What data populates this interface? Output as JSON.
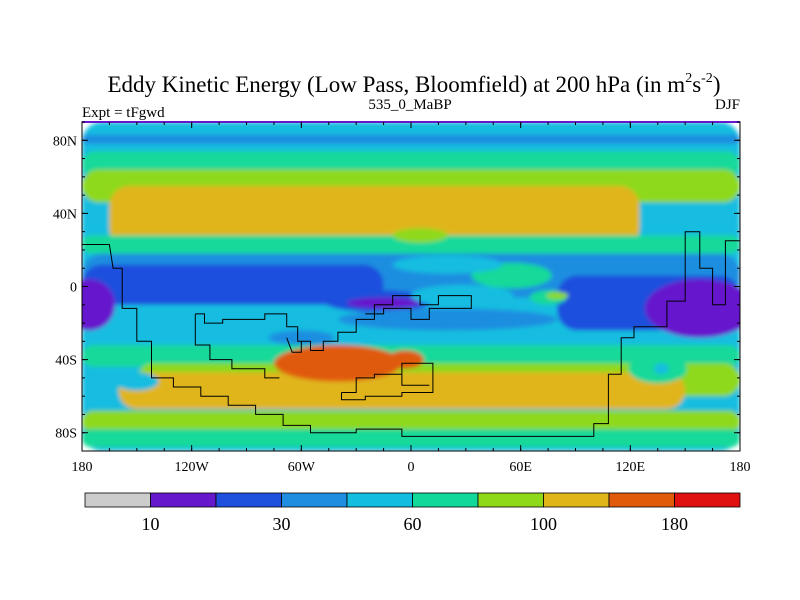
{
  "chart_data": {
    "type": "contour-map",
    "title": "Eddy Kinetic Energy (Low Pass, Bloomfield) at 200 hPa (in m",
    "title_units": {
      "sup1": "2",
      "mid": "s",
      "sup2": "-2",
      "close": ")"
    },
    "left_label": "Expt = tFgwd",
    "center_label": "535_0_MaBP",
    "right_label": "DJF",
    "lon_range": [
      -180,
      180
    ],
    "lat_range": [
      -90,
      90
    ],
    "x_ticks": [
      {
        "value": -180,
        "label": "180"
      },
      {
        "value": -120,
        "label": "120W"
      },
      {
        "value": -60,
        "label": "60W"
      },
      {
        "value": 0,
        "label": "0"
      },
      {
        "value": 60,
        "label": "60E"
      },
      {
        "value": 120,
        "label": "120E"
      },
      {
        "value": 180,
        "label": "180"
      }
    ],
    "y_ticks": [
      {
        "value": 80,
        "label": "80N"
      },
      {
        "value": 40,
        "label": "40N"
      },
      {
        "value": 0,
        "label": "0"
      },
      {
        "value": -40,
        "label": "40S"
      },
      {
        "value": -80,
        "label": "80S"
      }
    ],
    "colorbar": {
      "colors": [
        "#cccccc",
        "#6619cc",
        "#1f4fdd",
        "#1f8ee0",
        "#12bde0",
        "#12d99a",
        "#8ed91a",
        "#e0b51a",
        "#e05a0a",
        "#e01010"
      ],
      "labels": [
        {
          "after_box": 1,
          "text": "10"
        },
        {
          "after_box": 3,
          "text": "30"
        },
        {
          "after_box": 5,
          "text": "60"
        },
        {
          "after_box": 7,
          "text": "100"
        },
        {
          "after_box": 9,
          "text": "180"
        }
      ]
    },
    "fields": [
      {
        "level": 4,
        "lon": -180,
        "lat": 90,
        "w": 360,
        "h": 180
      },
      {
        "level": 3,
        "lon": -180,
        "lat": 83,
        "w": 360,
        "h": 5
      },
      {
        "level": 5,
        "lon": -180,
        "lat": 74,
        "w": 360,
        "h": 14
      },
      {
        "level": 6,
        "lon": -180,
        "lat": 64,
        "w": 360,
        "h": 18
      },
      {
        "level": 7,
        "lon": -165,
        "lat": 55,
        "w": 290,
        "h": 34
      },
      {
        "level": 5,
        "lon": -180,
        "lat": 28,
        "w": 360,
        "h": 10
      },
      {
        "level": 3,
        "lon": -180,
        "lat": 18,
        "w": 360,
        "h": 24
      },
      {
        "level": 2,
        "lon": -180,
        "lat": 12,
        "w": 165,
        "h": 22
      },
      {
        "level": 2,
        "lon": 80,
        "lat": 6,
        "w": 100,
        "h": 30
      },
      {
        "level": 5,
        "lon": -180,
        "lat": -32,
        "w": 360,
        "h": 12
      },
      {
        "level": 6,
        "lon": -150,
        "lat": -42,
        "w": 330,
        "h": 18
      },
      {
        "level": 7,
        "lon": -160,
        "lat": -47,
        "w": 310,
        "h": 20
      },
      {
        "level": 6,
        "lon": -180,
        "lat": -68,
        "w": 360,
        "h": 12
      },
      {
        "level": 5,
        "lon": -180,
        "lat": -78,
        "w": 360,
        "h": 10
      }
    ],
    "blobs": [
      {
        "level": 2,
        "lon": -18,
        "lat": -8,
        "rx": 30,
        "ry": 6
      },
      {
        "level": 1,
        "lon": -176,
        "lat": -10,
        "rx": 14,
        "ry": 14
      },
      {
        "level": 1,
        "lon": 158,
        "lat": -12,
        "rx": 30,
        "ry": 16
      },
      {
        "level": 1,
        "lon": -15,
        "lat": -9,
        "rx": 20,
        "ry": 3
      },
      {
        "level": 5,
        "lon": 55,
        "lat": 6,
        "rx": 22,
        "ry": 7
      },
      {
        "level": 5,
        "lon": 75,
        "lat": -6,
        "rx": 10,
        "ry": 4
      },
      {
        "level": 6,
        "lon": 80,
        "lat": -5,
        "rx": 6,
        "ry": 2
      },
      {
        "level": 4,
        "lon": 20,
        "lat": 12,
        "rx": 30,
        "ry": 5
      },
      {
        "level": 4,
        "lon": 28,
        "lat": -5,
        "rx": 28,
        "ry": 6
      },
      {
        "level": 3,
        "lon": 20,
        "lat": -18,
        "rx": 60,
        "ry": 6
      },
      {
        "level": 5,
        "lon": 135,
        "lat": -45,
        "rx": 16,
        "ry": 8
      },
      {
        "level": 4,
        "lon": 137,
        "lat": -45,
        "rx": 4,
        "ry": 3
      },
      {
        "level": 8,
        "lon": -40,
        "lat": -42,
        "rx": 35,
        "ry": 10
      },
      {
        "level": 8,
        "lon": -3,
        "lat": -40,
        "rx": 10,
        "ry": 5
      },
      {
        "level": 4,
        "lon": -150,
        "lat": -52,
        "rx": 12,
        "ry": 5
      },
      {
        "level": 3,
        "lon": -60,
        "lat": -28,
        "rx": 18,
        "ry": 4
      },
      {
        "level": 6,
        "lon": 5,
        "lat": 28,
        "rx": 15,
        "ry": 4
      }
    ],
    "coastlines": [
      [
        [
          -180,
          23
        ],
        [
          -165,
          23
        ],
        [
          -163,
          10
        ],
        [
          -158,
          10
        ],
        [
          -158,
          -12
        ],
        [
          -150,
          -12
        ],
        [
          -150,
          -30
        ],
        [
          -142,
          -30
        ],
        [
          -142,
          -50
        ],
        [
          -130,
          -50
        ],
        [
          -130,
          -55
        ],
        [
          -115,
          -55
        ],
        [
          -115,
          -60
        ],
        [
          -100,
          -60
        ],
        [
          -100,
          -65
        ],
        [
          -85,
          -65
        ],
        [
          -85,
          -70
        ],
        [
          -70,
          -70
        ],
        [
          -70,
          -76
        ],
        [
          -55,
          -76
        ],
        [
          -55,
          -80
        ],
        [
          -30,
          -80
        ],
        [
          -30,
          -78
        ],
        [
          -5,
          -78
        ],
        [
          -5,
          -82
        ],
        [
          100,
          -82
        ],
        [
          100,
          -75
        ],
        [
          108,
          -75
        ],
        [
          108,
          -48
        ],
        [
          115,
          -48
        ],
        [
          115,
          -28
        ],
        [
          122,
          -28
        ],
        [
          122,
          -22
        ],
        [
          140,
          -22
        ],
        [
          140,
          -8
        ],
        [
          150,
          -8
        ],
        [
          150,
          30
        ],
        [
          158,
          30
        ],
        [
          158,
          10
        ],
        [
          165,
          10
        ],
        [
          165,
          -10
        ],
        [
          172,
          -10
        ],
        [
          172,
          25
        ],
        [
          180,
          25
        ]
      ],
      [
        [
          -118,
          -15
        ],
        [
          -113,
          -15
        ],
        [
          -113,
          -20
        ],
        [
          -103,
          -20
        ],
        [
          -103,
          -18
        ],
        [
          -80,
          -18
        ],
        [
          -80,
          -15
        ],
        [
          -68,
          -15
        ],
        [
          -68,
          -22
        ],
        [
          -62,
          -22
        ],
        [
          -62,
          -30
        ],
        [
          -55,
          -30
        ],
        [
          -55,
          -35
        ],
        [
          -48,
          -35
        ],
        [
          -48,
          -30
        ],
        [
          -40,
          -30
        ],
        [
          -40,
          -25
        ],
        [
          -30,
          -25
        ],
        [
          -30,
          -18
        ],
        [
          -20,
          -18
        ],
        [
          -20,
          -10
        ],
        [
          -10,
          -10
        ],
        [
          -10,
          -5
        ],
        [
          5,
          -5
        ],
        [
          5,
          -10
        ],
        [
          15,
          -10
        ],
        [
          15,
          -5
        ],
        [
          33,
          -5
        ],
        [
          33,
          -12
        ],
        [
          10,
          -12
        ],
        [
          10,
          -18
        ],
        [
          0,
          -18
        ],
        [
          0,
          -12
        ],
        [
          -15,
          -12
        ],
        [
          -15,
          -15
        ],
        [
          -25,
          -15
        ]
      ],
      [
        [
          -118,
          -15
        ],
        [
          -118,
          -32
        ],
        [
          -110,
          -32
        ],
        [
          -110,
          -40
        ],
        [
          -98,
          -40
        ],
        [
          -98,
          -45
        ],
        [
          -80,
          -45
        ],
        [
          -80,
          -50
        ],
        [
          -72,
          -50
        ]
      ],
      [
        [
          -38,
          -58
        ],
        [
          -30,
          -58
        ],
        [
          -30,
          -50
        ],
        [
          -20,
          -50
        ],
        [
          -20,
          -48
        ],
        [
          -5,
          -48
        ],
        [
          -5,
          -42
        ],
        [
          12,
          -42
        ],
        [
          12,
          -58
        ],
        [
          -5,
          -58
        ],
        [
          -5,
          -60
        ],
        [
          -25,
          -60
        ],
        [
          -25,
          -62
        ],
        [
          -38,
          -62
        ],
        [
          -38,
          -58
        ]
      ],
      [
        [
          -5,
          -48
        ],
        [
          -5,
          -54
        ],
        [
          10,
          -54
        ]
      ],
      [
        [
          -68,
          -28
        ],
        [
          -65,
          -36
        ],
        [
          -60,
          -36
        ],
        [
          -60,
          -30
        ]
      ]
    ]
  }
}
